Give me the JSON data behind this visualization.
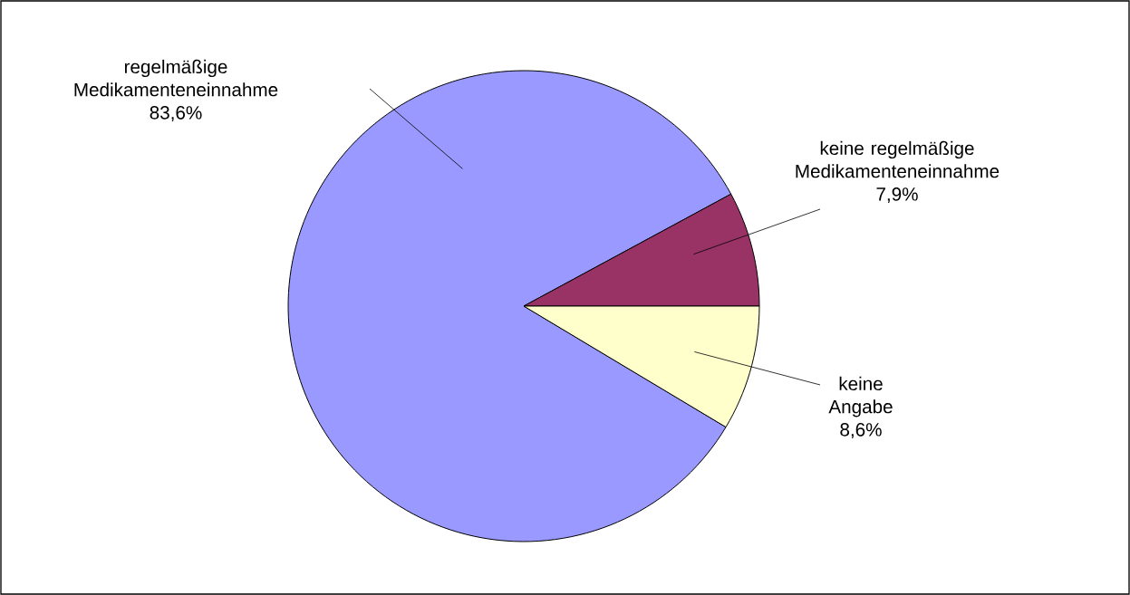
{
  "chart_data": {
    "type": "pie",
    "categories": [
      "regelmäßige Medikamenteneinnahme",
      "keine regelmäßige Medikamenteneinnahme",
      "keine Angabe"
    ],
    "values": [
      83.6,
      7.9,
      8.6
    ],
    "value_labels": [
      "83,6%",
      "7,9%",
      "8,6%"
    ],
    "colors": [
      "#9999ff",
      "#993366",
      "#ffffcc"
    ]
  }
}
